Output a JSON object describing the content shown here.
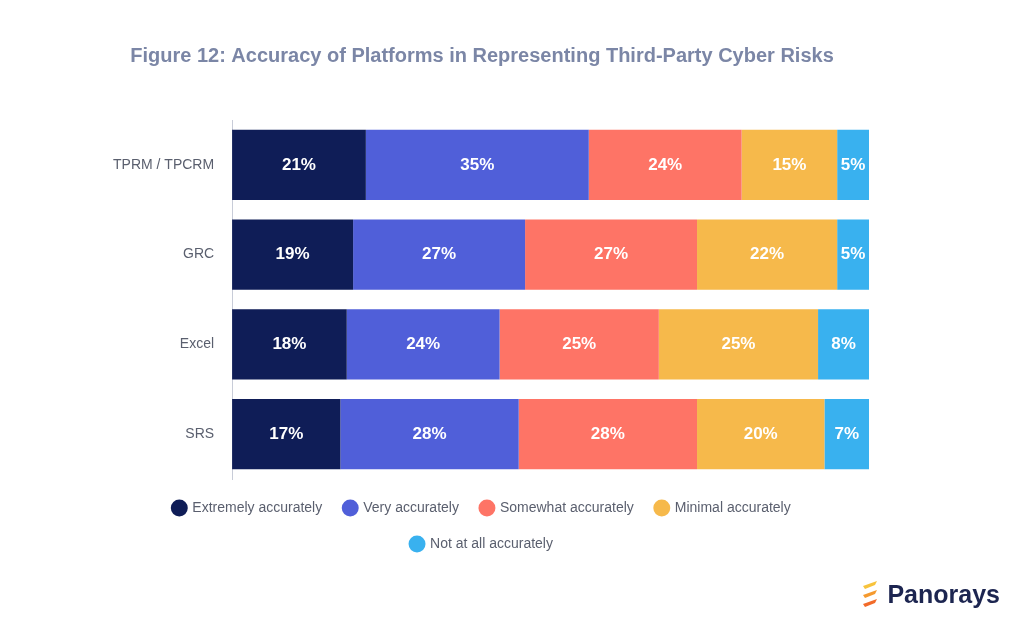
{
  "chart_data": {
    "type": "bar",
    "title": "Figure 12: Accuracy of Platforms in Representing Third-Party Cyber Risks",
    "orientation": "horizontal",
    "stacked": true,
    "data_labels": true,
    "tick_labels": "y",
    "grid": false,
    "legend": "bottom",
    "categories": [
      "TPRM / TPCRM",
      "GRC",
      "Excel",
      "SRS"
    ],
    "xlim": [
      0,
      100
    ],
    "series": [
      {
        "name": "Extremely accurately",
        "color": "#0f1d57",
        "values": [
          21,
          19,
          18,
          17
        ],
        "value_labels": [
          "21%",
          "19%",
          "18%",
          "17%"
        ]
      },
      {
        "name": "Very accurately",
        "color": "#505fd9",
        "values": [
          35,
          27,
          24,
          28
        ],
        "value_labels": [
          "35%",
          "27%",
          "24%",
          "28%"
        ]
      },
      {
        "name": "Somewhat accurately",
        "color": "#fe7466",
        "values": [
          24,
          27,
          25,
          28
        ],
        "value_labels": [
          "24%",
          "27%",
          "25%",
          "28%"
        ]
      },
      {
        "name": "Minimal accurately",
        "color": "#f6b94b",
        "values": [
          15,
          22,
          25,
          20
        ],
        "value_labels": [
          "15%",
          "22%",
          "25%",
          "20%"
        ]
      },
      {
        "name": "Not at all accurately",
        "color": "#39b1ef",
        "values": [
          5,
          5,
          8,
          7
        ],
        "value_labels": [
          "5%",
          "5%",
          "8%",
          "7%"
        ]
      }
    ],
    "annotations": [
      "Panorays"
    ]
  }
}
